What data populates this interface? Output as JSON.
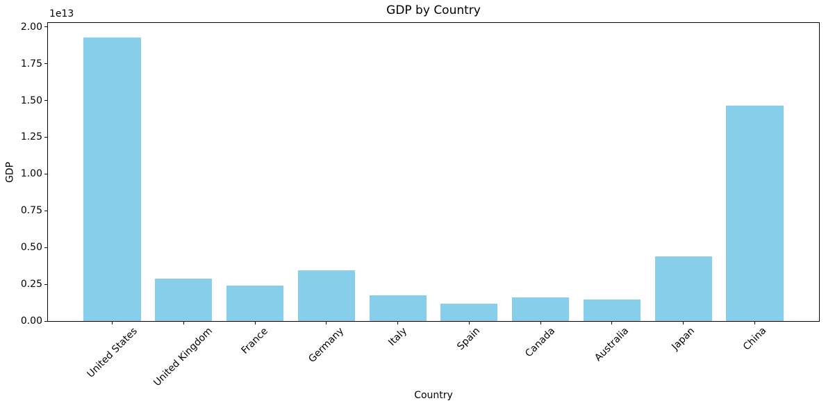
{
  "chart_data": {
    "type": "bar",
    "title": "GDP by Country",
    "xlabel": "Country",
    "ylabel": "GDP",
    "y_offset_text": "1e13",
    "categories": [
      "United States",
      "United Kingdom",
      "France",
      "Germany",
      "Italy",
      "Spain",
      "Canada",
      "Australia",
      "Japan",
      "China"
    ],
    "values": [
      19300000000000,
      2890000000000,
      2410000000000,
      3440000000000,
      1750000000000,
      1180000000000,
      1610000000000,
      1490000000000,
      4380000000000,
      14630000000000
    ],
    "bar_color": "#87CEEB",
    "axis_color": "#000000",
    "text_color": "#000000",
    "background_color": "#ffffff",
    "ylim": [
      0,
      20270000000000
    ],
    "y_ticks": {
      "values": [
        0,
        2500000000000,
        5000000000000,
        7500000000000,
        10000000000000,
        12500000000000,
        15000000000000,
        17500000000000,
        20000000000000
      ],
      "labels": [
        "0.00",
        "0.25",
        "0.50",
        "0.75",
        "1.00",
        "1.25",
        "1.50",
        "1.75",
        "2.00"
      ]
    },
    "x_tick_rotation_deg": 45,
    "bar_relative_width": 0.8,
    "grid": false,
    "legend_visible": false
  }
}
